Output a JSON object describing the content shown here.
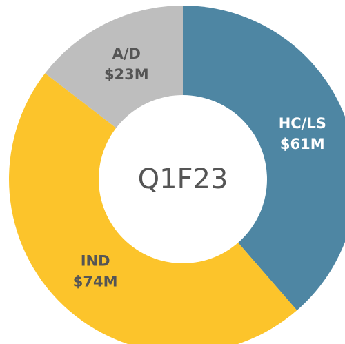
{
  "chart_data": {
    "type": "donut",
    "center_text": "Q1F23",
    "categories": [
      "HC/LS",
      "IND",
      "A/D"
    ],
    "values": [
      61,
      74,
      23
    ],
    "value_labels": [
      "$61M",
      "$74M",
      "$23M"
    ],
    "colors": [
      "#4e86a3",
      "#fcc42b",
      "#bebebe"
    ]
  }
}
